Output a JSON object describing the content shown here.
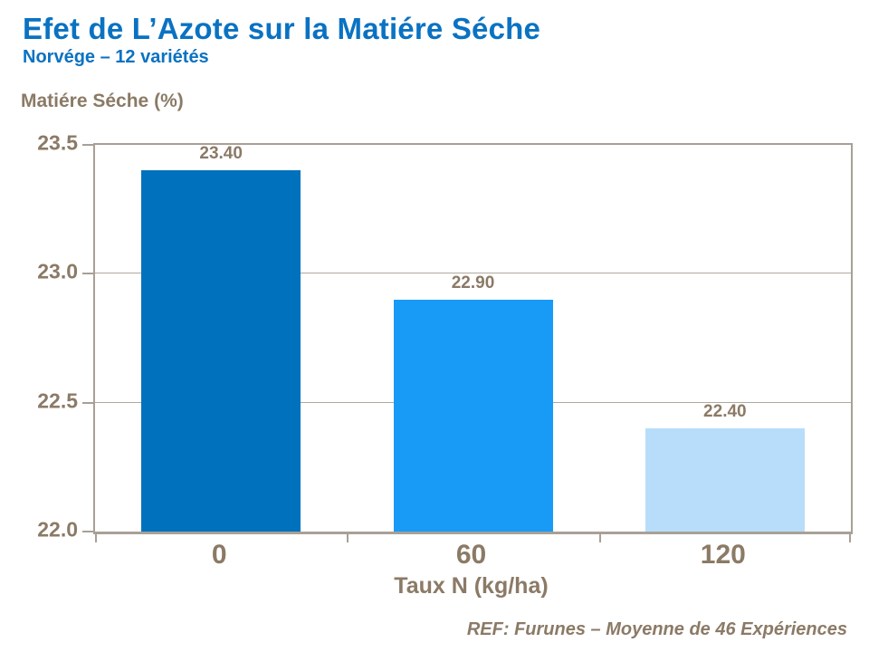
{
  "slide": {
    "title": "Efet de L’Azote sur la Matiére Séche",
    "subtitle": "Norvége – 12 variétés",
    "footer": "REF: Furunes – Moyenne de 46 Expériences"
  },
  "colors": {
    "title_blue": "#0a72c2",
    "text_brown": "#8b7a66",
    "axis_line": "#a8a096",
    "gridline": "#b0a89e",
    "bar_colors": [
      "#0071bc",
      "#189bf7",
      "#b8ddfa"
    ]
  },
  "chart_data": {
    "type": "bar",
    "title": "Efet de L’Azote sur la Matiére Séche",
    "subtitle": "Norvége – 12 variétés",
    "categories": [
      "0",
      "60",
      "120"
    ],
    "values": [
      23.4,
      22.9,
      22.4
    ],
    "value_labels": [
      "23.40",
      "22.90",
      "22.40"
    ],
    "xlabel": "Taux N (kg/ha)",
    "ylabel": "Matiére Séche (%)",
    "ylim": [
      22.0,
      23.5
    ],
    "yticks": [
      22.0,
      22.5,
      23.0,
      23.5
    ],
    "ytick_labels": [
      "22.0",
      "22.5",
      "23.0",
      "23.5"
    ],
    "grid": true,
    "legend": false,
    "annotation": "REF: Furunes – Moyenne de 46 Expériences"
  }
}
